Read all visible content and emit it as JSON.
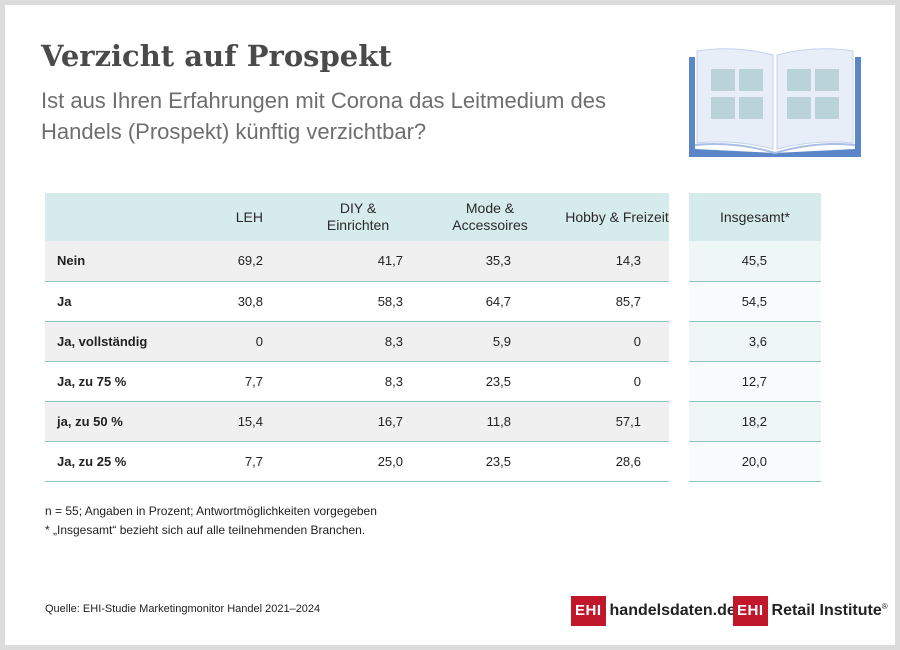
{
  "title": "Verzicht auf Prospekt",
  "subtitle": "Ist aus Ihren Erfahrungen mit Corona das Leitmedium des Handels (Prospekt) künftig verzichtbar?",
  "icon": "open-book-icon",
  "colors": {
    "header_bg": "#d6ebeb",
    "row_divider": "#8fc4c4",
    "row_alt_bg": "#f0f0f0",
    "book_blue": "#5b87c9",
    "book_pages": "#e8eef8",
    "book_windows": "#b9d3d8",
    "brand_red": "#c0182a"
  },
  "chart_data": {
    "type": "table",
    "title": "Verzicht auf Prospekt",
    "subtitle": "Ist aus Ihren Erfahrungen mit Corona das Leitmedium des Handels (Prospekt) künftig verzichtbar?",
    "columns": [
      "LEH",
      "DIY & Einrichten",
      "Mode & Accessoires",
      "Hobby & Freizeit",
      "Insgesamt*"
    ],
    "rows": [
      {
        "label": "Nein",
        "values": [
          "69,2",
          "41,7",
          "35,3",
          "14,3",
          "45,5"
        ]
      },
      {
        "label": "Ja",
        "values": [
          "30,8",
          "58,3",
          "64,7",
          "85,7",
          "54,5"
        ]
      },
      {
        "label": "Ja, vollständig",
        "values": [
          "0",
          "8,3",
          "5,9",
          "0",
          "3,6"
        ]
      },
      {
        "label": "Ja, zu 75 %",
        "values": [
          "7,7",
          "8,3",
          "23,5",
          "0",
          "12,7"
        ]
      },
      {
        "label": "ja, zu 50 %",
        "values": [
          "15,4",
          "16,7",
          "11,8",
          "57,1",
          "18,2"
        ]
      },
      {
        "label": "Ja, zu 25 %",
        "values": [
          "7,7",
          "25,0",
          "23,5",
          "28,6",
          "20,0"
        ]
      }
    ],
    "unit": "Prozent"
  },
  "notes": {
    "line1": "n = 55; Angaben in Prozent; Antwortmöglichkeiten vorgegeben",
    "line2": "* „Insgesamt“ bezieht sich auf alle teilnehmenden Branchen."
  },
  "source": "Quelle: EHI-Studie Marketingmonitor Handel 2021–2024",
  "logos": {
    "logo1_badge": "EHI",
    "logo1_text": "handelsdaten.de",
    "logo2_badge": "EHI",
    "logo2_text": "Retail Institute",
    "logo2_mark": "®"
  }
}
